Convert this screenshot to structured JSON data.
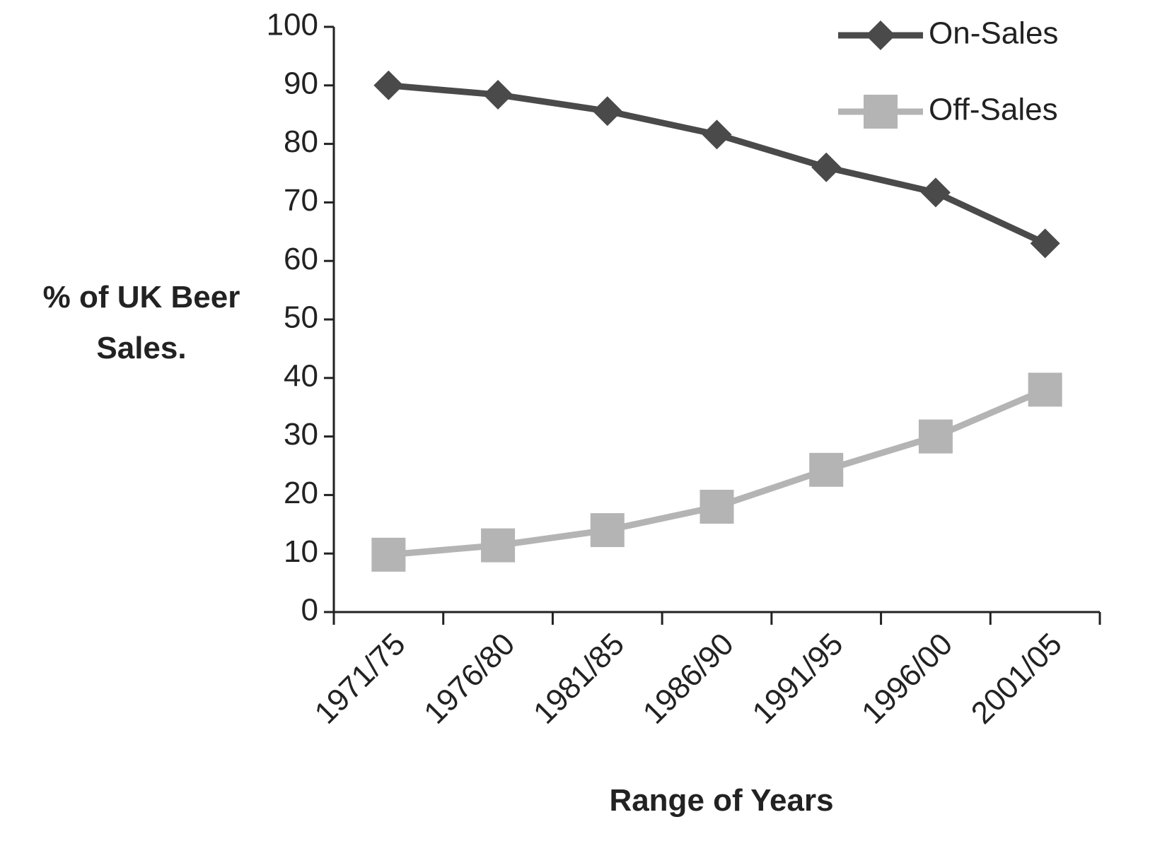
{
  "chart_data": {
    "type": "line",
    "x_label": "Range of Years",
    "y_label": "% of UK Beer Sales.",
    "categories": [
      "1971/75",
      "1976/80",
      "1981/85",
      "1986/90",
      "1991/95",
      "1996/00",
      "2001/05"
    ],
    "series": [
      {
        "name": "On-Sales",
        "color": "#4a4a4a",
        "marker": "diamond",
        "values": [
          90,
          88.4,
          85.6,
          81.6,
          76,
          71.7,
          63
        ]
      },
      {
        "name": "Off-Sales",
        "color": "#b4b4b4",
        "marker": "square",
        "values": [
          9.8,
          11.4,
          14,
          18,
          24.3,
          30,
          38
        ]
      }
    ],
    "ylim": [
      0,
      100
    ],
    "yticks": [
      0,
      10,
      20,
      30,
      40,
      50,
      60,
      70,
      80,
      90,
      100
    ],
    "grid": false,
    "legend": "top-right"
  }
}
